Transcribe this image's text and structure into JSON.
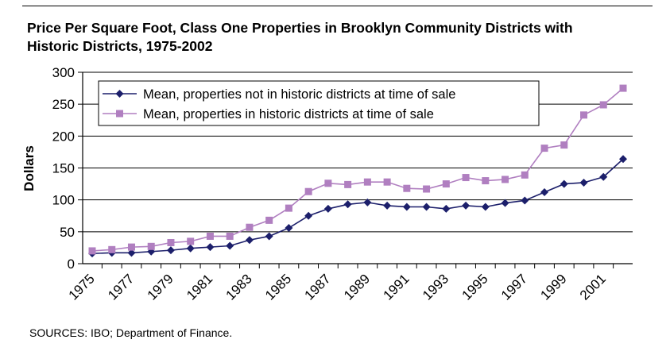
{
  "chart_data": {
    "type": "line",
    "title": "Price Per Square Foot, Class One Properties in Brooklyn Community Districts with Historic Districts, 1975-2002",
    "ylabel": "Dollars",
    "xlabel": "",
    "ylim": [
      0,
      300
    ],
    "yticks": [
      0,
      50,
      100,
      150,
      200,
      250,
      300
    ],
    "x": [
      1975,
      1976,
      1977,
      1978,
      1979,
      1980,
      1981,
      1982,
      1983,
      1984,
      1985,
      1986,
      1987,
      1988,
      1989,
      1990,
      1991,
      1992,
      1993,
      1994,
      1995,
      1996,
      1997,
      1998,
      1999,
      2000,
      2001,
      2002
    ],
    "xtick_labels": [
      "1975",
      "1977",
      "1979",
      "1981",
      "1983",
      "1985",
      "1987",
      "1989",
      "1991",
      "1993",
      "1995",
      "1997",
      "1999",
      "2001"
    ],
    "grid": true,
    "legend_position": "top-center",
    "series": [
      {
        "name": "Mean, properties not in historic districts at time of sale",
        "color": "#1c1f6b",
        "marker": "diamond",
        "values": [
          16,
          17,
          17,
          19,
          21,
          24,
          26,
          28,
          37,
          43,
          56,
          75,
          86,
          93,
          96,
          91,
          89,
          89,
          86,
          91,
          89,
          95,
          99,
          112,
          125,
          127,
          136,
          164
        ]
      },
      {
        "name": "Mean, properties in historic districts at time of sale",
        "color": "#b07fc0",
        "marker": "square",
        "values": [
          20,
          22,
          26,
          27,
          33,
          35,
          43,
          43,
          57,
          68,
          87,
          113,
          126,
          124,
          128,
          128,
          118,
          117,
          125,
          135,
          130,
          132,
          139,
          181,
          186,
          233,
          249,
          275
        ]
      }
    ]
  },
  "source": "SOURCES: IBO; Department of Finance."
}
